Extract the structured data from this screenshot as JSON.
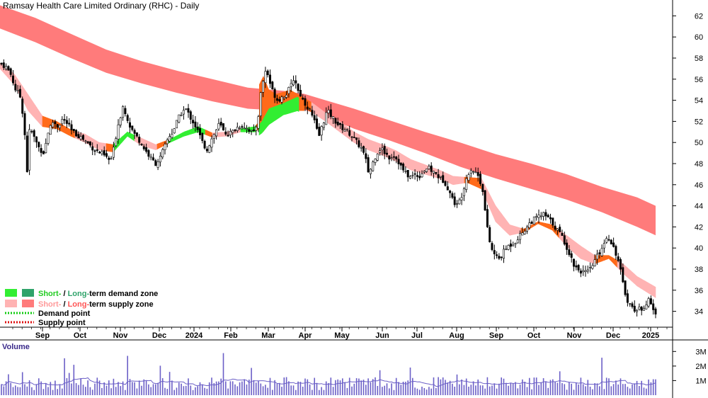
{
  "chart_data": {
    "type": "candlestick",
    "title": "Ramsay Health Care Limited Ordinary (RHC) - Daily",
    "y_ticks": [
      34,
      36,
      38,
      40,
      42,
      44,
      46,
      48,
      50,
      52,
      54,
      56,
      58,
      60,
      62
    ],
    "ylim": [
      32.5,
      63.5
    ],
    "x_labels": [
      "Sep",
      "Oct",
      "Nov",
      "Dec",
      "2024",
      "Feb",
      "Mar",
      "Apr",
      "May",
      "Jun",
      "Jul",
      "Aug",
      "Sep",
      "Oct",
      "Nov",
      "Dec",
      "2025"
    ],
    "legend": {
      "demand_zone": {
        "prefix": "Short-",
        "sep": " / ",
        "middle": "Long-",
        "suffix": "term demand zone"
      },
      "supply_zone": {
        "prefix": "Short-",
        "sep": " / ",
        "middle": "Long-",
        "suffix": "term supply zone"
      },
      "demand_point": "Demand point",
      "supply_point": "Supply point"
    },
    "volume": {
      "title": "Volume",
      "ticks": [
        "3M",
        "2M",
        "1M"
      ],
      "tick_values": [
        3,
        2,
        1
      ],
      "ylim": [
        0,
        3.6
      ]
    },
    "price_path": [
      [
        0,
        57.5
      ],
      [
        8,
        57.2
      ],
      [
        15,
        56.5
      ],
      [
        22,
        55.0
      ],
      [
        28,
        54.5
      ],
      [
        34,
        52.0
      ],
      [
        38,
        47.0
      ],
      [
        42,
        51.5
      ],
      [
        48,
        50.5
      ],
      [
        55,
        49.5
      ],
      [
        62,
        49.0
      ],
      [
        68,
        51.0
      ],
      [
        75,
        52.0
      ],
      [
        82,
        51.5
      ],
      [
        88,
        52.2
      ],
      [
        95,
        51.8
      ],
      [
        102,
        51.0
      ],
      [
        110,
        50.7
      ],
      [
        118,
        50.3
      ],
      [
        126,
        49.8
      ],
      [
        134,
        49.3
      ],
      [
        142,
        49.0
      ],
      [
        150,
        48.6
      ],
      [
        156,
        48.2
      ],
      [
        161,
        49.5
      ],
      [
        166,
        51.5
      ],
      [
        170,
        52.5
      ],
      [
        174,
        53.5
      ],
      [
        179,
        52.5
      ],
      [
        184,
        51.5
      ],
      [
        190,
        50.8
      ],
      [
        196,
        50.3
      ],
      [
        202,
        49.6
      ],
      [
        208,
        49.0
      ],
      [
        214,
        48.4
      ],
      [
        220,
        48.0
      ],
      [
        226,
        48.5
      ],
      [
        232,
        49.5
      ],
      [
        238,
        50.5
      ],
      [
        244,
        51.0
      ],
      [
        250,
        52.0
      ],
      [
        256,
        52.8
      ],
      [
        262,
        53.2
      ],
      [
        268,
        52.5
      ],
      [
        274,
        51.8
      ],
      [
        280,
        51.0
      ],
      [
        286,
        50.0
      ],
      [
        292,
        49.3
      ],
      [
        298,
        50.2
      ],
      [
        304,
        51.0
      ],
      [
        310,
        51.8
      ],
      [
        316,
        51.0
      ],
      [
        322,
        50.8
      ],
      [
        328,
        51.0
      ],
      [
        334,
        51.4
      ],
      [
        340,
        51.6
      ],
      [
        346,
        51.5
      ],
      [
        352,
        51.2
      ],
      [
        358,
        50.8
      ],
      [
        364,
        52.0
      ],
      [
        368,
        54.5
      ],
      [
        372,
        56.0
      ],
      [
        376,
        57.0
      ],
      [
        380,
        56.0
      ],
      [
        384,
        55.0
      ],
      [
        388,
        54.5
      ],
      [
        392,
        54.0
      ],
      [
        396,
        54.2
      ],
      [
        400,
        54.4
      ],
      [
        404,
        54.6
      ],
      [
        408,
        55.0
      ],
      [
        412,
        55.5
      ],
      [
        416,
        56.3
      ],
      [
        420,
        55.0
      ],
      [
        424,
        54.6
      ],
      [
        428,
        54.0
      ],
      [
        432,
        53.6
      ],
      [
        438,
        53.0
      ],
      [
        444,
        52.0
      ],
      [
        450,
        50.5
      ],
      [
        456,
        51.8
      ],
      [
        462,
        53.0
      ],
      [
        468,
        52.5
      ],
      [
        474,
        52.0
      ],
      [
        480,
        51.5
      ],
      [
        486,
        51.3
      ],
      [
        492,
        51.0
      ],
      [
        498,
        50.5
      ],
      [
        504,
        50.0
      ],
      [
        510,
        49.5
      ],
      [
        516,
        48.5
      ],
      [
        521,
        47.0
      ],
      [
        526,
        48.0
      ],
      [
        532,
        49.0
      ],
      [
        538,
        49.5
      ],
      [
        544,
        49.0
      ],
      [
        550,
        48.6
      ],
      [
        556,
        48.8
      ],
      [
        562,
        48.3
      ],
      [
        568,
        47.5
      ],
      [
        574,
        47.0
      ],
      [
        580,
        46.7
      ],
      [
        586,
        47.0
      ],
      [
        592,
        46.8
      ],
      [
        598,
        47.3
      ],
      [
        604,
        47.6
      ],
      [
        610,
        47.3
      ],
      [
        616,
        47.0
      ],
      [
        622,
        46.6
      ],
      [
        628,
        46.3
      ],
      [
        634,
        45.5
      ],
      [
        640,
        44.5
      ],
      [
        646,
        44.0
      ],
      [
        652,
        45.0
      ],
      [
        658,
        46.5
      ],
      [
        664,
        47.5
      ],
      [
        670,
        47.3
      ],
      [
        676,
        46.8
      ],
      [
        682,
        45.5
      ],
      [
        686,
        43.0
      ],
      [
        690,
        41.0
      ],
      [
        695,
        39.8
      ],
      [
        700,
        39.2
      ],
      [
        705,
        39.0
      ],
      [
        710,
        39.5
      ],
      [
        715,
        40.0
      ],
      [
        720,
        40.3
      ],
      [
        726,
        40.5
      ],
      [
        732,
        41.0
      ],
      [
        738,
        41.5
      ],
      [
        744,
        42.0
      ],
      [
        750,
        42.5
      ],
      [
        756,
        42.8
      ],
      [
        762,
        43.0
      ],
      [
        768,
        43.2
      ],
      [
        774,
        42.8
      ],
      [
        780,
        42.4
      ],
      [
        786,
        41.8
      ],
      [
        792,
        41.3
      ],
      [
        798,
        40.5
      ],
      [
        804,
        39.5
      ],
      [
        810,
        38.5
      ],
      [
        816,
        38.0
      ],
      [
        822,
        37.8
      ],
      [
        828,
        37.6
      ],
      [
        834,
        38.0
      ],
      [
        840,
        38.8
      ],
      [
        846,
        39.5
      ],
      [
        852,
        40.3
      ],
      [
        858,
        41.2
      ],
      [
        864,
        40.5
      ],
      [
        870,
        39.5
      ],
      [
        876,
        38.0
      ],
      [
        880,
        36.5
      ],
      [
        884,
        35.5
      ],
      [
        888,
        34.8
      ],
      [
        894,
        34.3
      ],
      [
        900,
        34.1
      ],
      [
        906,
        34.3
      ],
      [
        912,
        34.7
      ],
      [
        916,
        35.0
      ],
      [
        920,
        34.6
      ],
      [
        924,
        34.0
      ],
      [
        926,
        33.6
      ]
    ],
    "short_term_band": [
      [
        0,
        57.5,
        57.0
      ],
      [
        20,
        56.5,
        55.5
      ],
      [
        40,
        54.5,
        53.0
      ],
      [
        60,
        52.5,
        51.5
      ],
      [
        80,
        52.0,
        51.3
      ],
      [
        100,
        51.2,
        50.6
      ],
      [
        120,
        50.8,
        50.0
      ],
      [
        140,
        50.0,
        49.3
      ],
      [
        160,
        49.8,
        49.1
      ],
      [
        180,
        51.0,
        50.6
      ],
      [
        200,
        50.4,
        49.7
      ],
      [
        220,
        49.8,
        49.3
      ],
      [
        240,
        50.3,
        50.0
      ],
      [
        260,
        51.0,
        50.6
      ],
      [
        280,
        51.5,
        51.0
      ],
      [
        300,
        50.9,
        50.5
      ],
      [
        320,
        51.0,
        50.6
      ],
      [
        340,
        51.3,
        51.0
      ],
      [
        360,
        51.5,
        51.0
      ],
      [
        370,
        52.3,
        51.5
      ],
      [
        380,
        53.5,
        52.3
      ],
      [
        400,
        54.0,
        53.2
      ],
      [
        420,
        54.6,
        53.6
      ],
      [
        440,
        53.8,
        52.9
      ],
      [
        460,
        52.8,
        52.0
      ],
      [
        480,
        52.0,
        51.0
      ],
      [
        500,
        51.0,
        50.0
      ],
      [
        520,
        50.3,
        49.3
      ],
      [
        540,
        49.8,
        48.8
      ],
      [
        560,
        49.2,
        48.2
      ],
      [
        580,
        48.4,
        47.4
      ],
      [
        600,
        47.9,
        47.0
      ],
      [
        620,
        47.4,
        46.6
      ],
      [
        640,
        46.8,
        46.0
      ],
      [
        660,
        46.7,
        46.2
      ],
      [
        680,
        46.6,
        45.6
      ],
      [
        700,
        44.0,
        42.5
      ],
      [
        720,
        42.2,
        41.2
      ],
      [
        740,
        41.8,
        41.5
      ],
      [
        760,
        42.5,
        42.3
      ],
      [
        780,
        42.2,
        41.7
      ],
      [
        800,
        41.2,
        40.2
      ],
      [
        820,
        40.2,
        39.0
      ],
      [
        840,
        39.3,
        38.5
      ],
      [
        860,
        39.3,
        39.0
      ],
      [
        880,
        38.5,
        37.6
      ],
      [
        900,
        37.3,
        36.4
      ],
      [
        926,
        36.3,
        35.3
      ]
    ],
    "long_term_band": [
      [
        0,
        63.0,
        60.8
      ],
      [
        50,
        61.8,
        59.5
      ],
      [
        100,
        60.3,
        58.0
      ],
      [
        150,
        58.8,
        56.6
      ],
      [
        200,
        57.7,
        55.6
      ],
      [
        250,
        56.8,
        54.7
      ],
      [
        300,
        56.0,
        53.9
      ],
      [
        350,
        55.2,
        53.2
      ],
      [
        400,
        54.9,
        53.0
      ],
      [
        430,
        54.6,
        53.1
      ],
      [
        460,
        54.0,
        52.4
      ],
      [
        500,
        53.2,
        51.3
      ],
      [
        550,
        52.1,
        50.2
      ],
      [
        600,
        51.0,
        49.0
      ],
      [
        650,
        50.0,
        47.7
      ],
      [
        700,
        48.9,
        46.6
      ],
      [
        750,
        48.0,
        45.6
      ],
      [
        800,
        47.0,
        44.6
      ],
      [
        850,
        45.8,
        43.4
      ],
      [
        900,
        44.8,
        42.0
      ],
      [
        926,
        44.0,
        41.2
      ]
    ]
  },
  "colors": {
    "long_supply": "#ff7b7b",
    "short_supply": "#ffb3b3",
    "short_demand": "#33ee33",
    "long_demand": "#2fa36a",
    "cross_zone": "#ff6a1a",
    "candle": "#000000",
    "volume_bar": "#6b5fc7",
    "volume_avg": "#6b5fc7"
  }
}
